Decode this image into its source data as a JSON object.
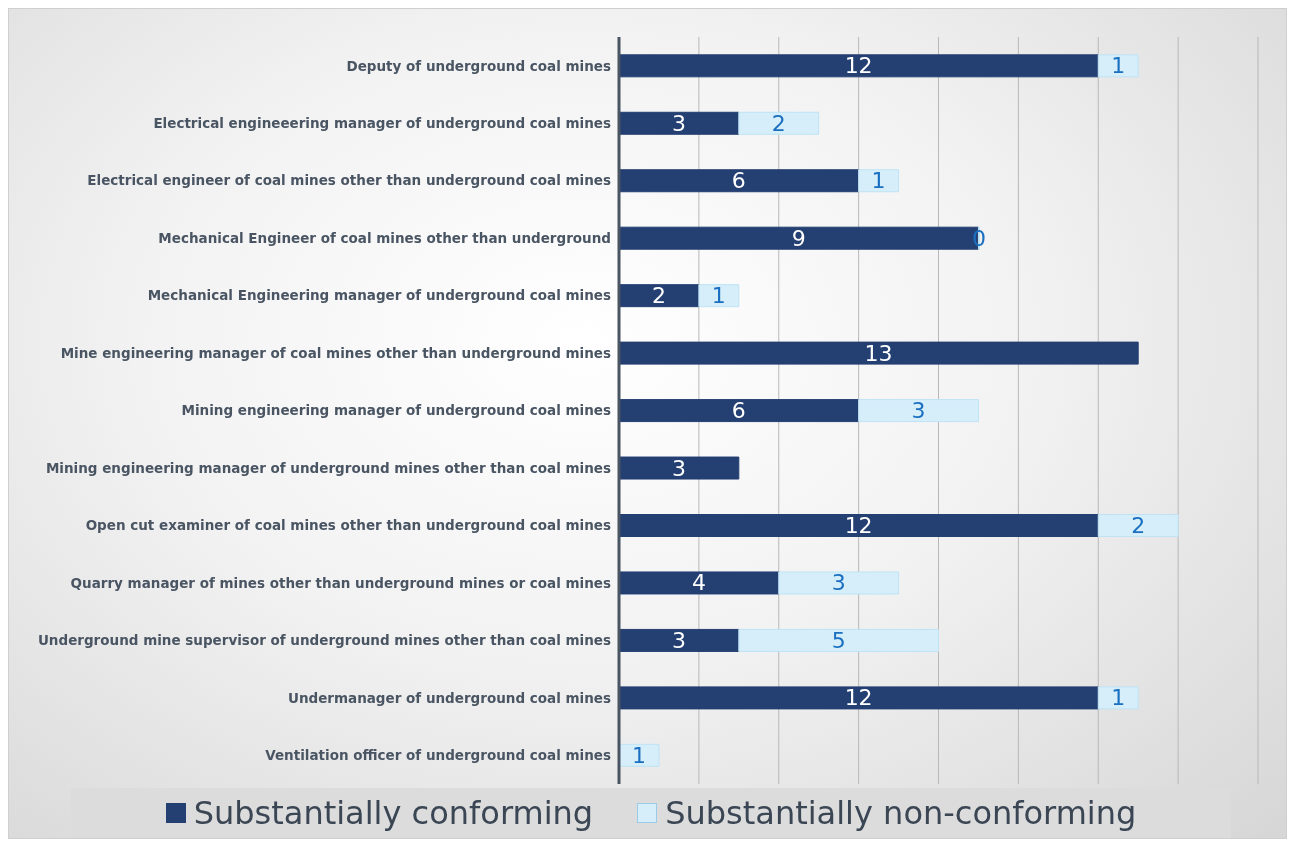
{
  "chart_data": {
    "type": "bar",
    "orientation": "horizontal",
    "stacked": true,
    "categories": [
      "Deputy of underground coal mines",
      "Electrical engineeering manager of underground coal mines",
      "Electrical engineer of coal mines other than underground coal mines",
      "Mechanical Engineer of coal mines other than underground",
      "Mechanical Engineering manager of underground coal mines",
      "Mine engineering manager of coal mines other than underground mines",
      "Mining engineering manager of underground coal mines",
      "Mining engineering manager of underground mines other than coal mines",
      "Open cut examiner of coal mines other than underground coal mines",
      "Quarry manager of mines other than underground mines or coal mines",
      "Underground mine supervisor of underground mines other than coal mines",
      "Undermanager of underground coal mines",
      "Ventilation officer of underground coal mines"
    ],
    "series": [
      {
        "name": "Substantially conforming",
        "color": "#243f72",
        "values": [
          12,
          3,
          6,
          9,
          2,
          13,
          6,
          3,
          12,
          4,
          3,
          12,
          null
        ]
      },
      {
        "name": "Substantially non-conforming",
        "color": "#d5eefa",
        "values": [
          1,
          2,
          1,
          0,
          1,
          null,
          3,
          null,
          2,
          3,
          5,
          1,
          1
        ]
      }
    ],
    "tick_labels": "y",
    "grid": "x",
    "data_labels": true,
    "legend": "bottom"
  }
}
